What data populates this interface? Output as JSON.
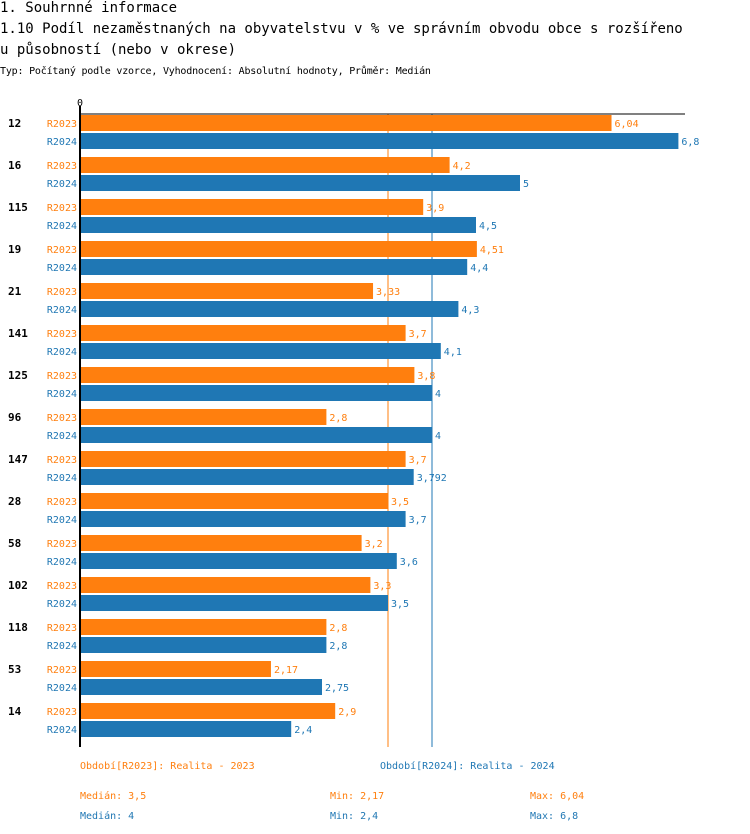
{
  "header": {
    "section": "1. Souhrnné informace",
    "title_line1": "1.10 Podíl nezaměstnaných na obyvatelstvu v % ve správním obvodu obce s rozšířeno",
    "title_line2": "u působností (nebo v okrese)",
    "subtitle": "Typ: Počítaný podle vzorce, Vyhodnocení: Absolutní hodnoty, Průměr: Medián"
  },
  "chart_data": {
    "type": "bar",
    "orientation": "horizontal",
    "title": "1.10 Podíl nezaměstnaných na obyvatelstvu v % ve správním obvodu obce s rozšířenou působností (nebo v okrese)",
    "xlabel": "",
    "ylabel": "",
    "x_tick_labels": [
      "0"
    ],
    "xlim": [
      0,
      6.9
    ],
    "categories": [
      "12",
      "16",
      "115",
      "19",
      "21",
      "141",
      "125",
      "96",
      "147",
      "28",
      "58",
      "102",
      "118",
      "53",
      "14"
    ],
    "series": [
      {
        "name": "R2023",
        "color": "#ff7f0e",
        "values": [
          6.04,
          4.2,
          3.9,
          4.51,
          3.33,
          3.7,
          3.8,
          2.8,
          3.7,
          3.5,
          3.2,
          3.3,
          2.8,
          2.17,
          2.9
        ],
        "labels": [
          "6,04",
          "4,2",
          "3,9",
          "4,51",
          "3,33",
          "3,7",
          "3,8",
          "2,8",
          "3,7",
          "3,5",
          "3,2",
          "3,3",
          "2,8",
          "2,17",
          "2,9"
        ],
        "median": 3.5
      },
      {
        "name": "R2024",
        "color": "#1f77b4",
        "values": [
          6.8,
          5,
          4.5,
          4.4,
          4.3,
          4.1,
          4,
          4,
          3.792,
          3.7,
          3.6,
          3.5,
          2.8,
          2.75,
          2.4
        ],
        "labels": [
          "6,8",
          "5",
          "4,5",
          "4,4",
          "4,3",
          "4,1",
          "4",
          "4",
          "3,792",
          "3,7",
          "3,6",
          "3,5",
          "2,8",
          "2,75",
          "2,4"
        ],
        "median": 4
      }
    ],
    "grid": false,
    "legend": "bottom"
  },
  "footer": {
    "legend_2023": "Období[R2023]: Realita - 2023",
    "legend_2024": "Období[R2024]: Realita - 2024",
    "stats_2023": {
      "median": "Medián: 3,5",
      "min": "Min: 2,17",
      "max": "Max: 6,04"
    },
    "stats_2024": {
      "median": "Medián: 4",
      "min": "Min: 2,4",
      "max": "Max: 6,8"
    }
  }
}
